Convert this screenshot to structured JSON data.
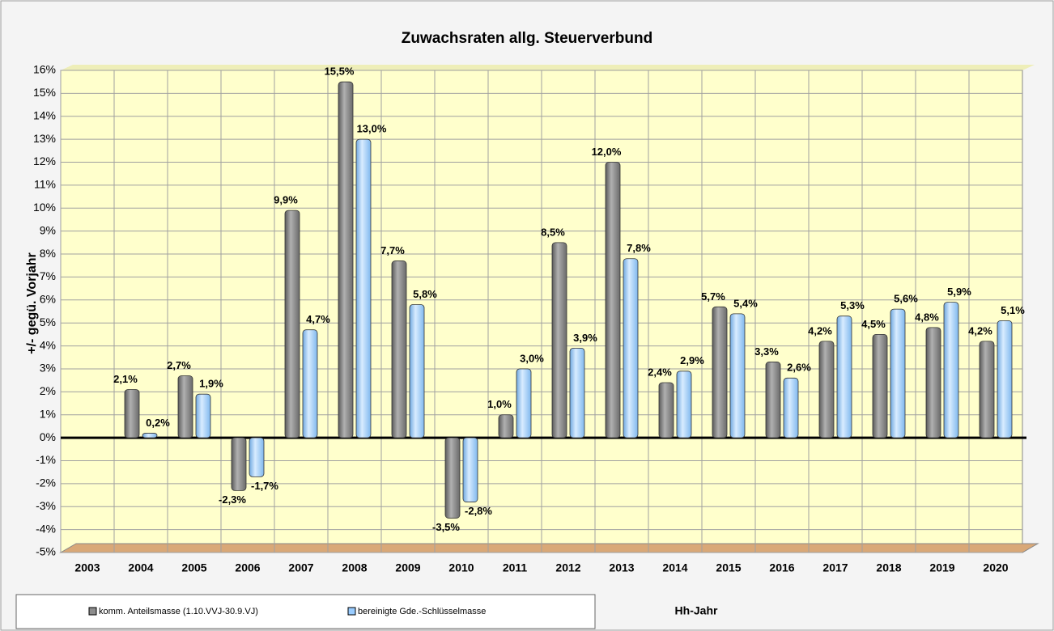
{
  "chart_data": {
    "type": "bar",
    "title": "Zuwachsraten allg. Steuerverbund",
    "x_label": "Hh-Jahr",
    "y_label": "+/- gegü. Vorjahr",
    "categories": [
      "2003",
      "2004",
      "2005",
      "2006",
      "2007",
      "2008",
      "2009",
      "2010",
      "2011",
      "2012",
      "2013",
      "2014",
      "2015",
      "2016",
      "2017",
      "2018",
      "2019",
      "2020"
    ],
    "series": [
      {
        "name": "komm. Anteilsmasse (1.10.VVJ-30.9.VJ)",
        "color": "#8c8c8c",
        "values": [
          null,
          2.1,
          2.7,
          -2.3,
          9.9,
          15.5,
          7.7,
          -3.5,
          1.0,
          8.5,
          12.0,
          2.4,
          5.7,
          3.3,
          4.2,
          4.5,
          4.8,
          4.2
        ],
        "value_labels": [
          null,
          "2,1%",
          "2,7%",
          "-2,3%",
          "9,9%",
          "15,5%",
          "7,7%",
          "-3,5%",
          "1,0%",
          "8,5%",
          "12,0%",
          "2,4%",
          "5,7%",
          "3,3%",
          "4,2%",
          "4,5%",
          "4,8%",
          "4,2%"
        ]
      },
      {
        "name": "bereinigte Gde.-Schlüsselmasse",
        "color": "#99ccff",
        "values": [
          null,
          0.2,
          1.9,
          -1.7,
          4.7,
          13.0,
          5.8,
          -2.8,
          3.0,
          3.9,
          7.8,
          2.9,
          5.4,
          2.6,
          5.3,
          5.6,
          5.9,
          5.1
        ],
        "value_labels": [
          null,
          "0,2%",
          "1,9%",
          "-1,7%",
          "4,7%",
          "13,0%",
          "5,8%",
          "-2,8%",
          "3,0%",
          "3,9%",
          "7,8%",
          "2,9%",
          "5,4%",
          "2,6%",
          "5,3%",
          "5,6%",
          "5,9%",
          "5,1%"
        ]
      }
    ],
    "ylim": [
      -5,
      16
    ],
    "yticks": [
      {
        "value": -5,
        "label": "-5%"
      },
      {
        "value": -4,
        "label": "-4%"
      },
      {
        "value": -3,
        "label": "-3%"
      },
      {
        "value": -2,
        "label": "-2%"
      },
      {
        "value": -1,
        "label": "-1%"
      },
      {
        "value": 0,
        "label": "0%"
      },
      {
        "value": 1,
        "label": "1%"
      },
      {
        "value": 2,
        "label": "2%"
      },
      {
        "value": 3,
        "label": "3%"
      },
      {
        "value": 4,
        "label": "4%"
      },
      {
        "value": 5,
        "label": "5%"
      },
      {
        "value": 6,
        "label": "6%"
      },
      {
        "value": 7,
        "label": "7%"
      },
      {
        "value": 8,
        "label": "8%"
      },
      {
        "value": 9,
        "label": "9%"
      },
      {
        "value": 10,
        "label": "10%"
      },
      {
        "value": 11,
        "label": "11%"
      },
      {
        "value": 12,
        "label": "12%"
      },
      {
        "value": 13,
        "label": "13%"
      },
      {
        "value": 14,
        "label": "14%"
      },
      {
        "value": 15,
        "label": "15%"
      },
      {
        "value": 16,
        "label": "16%"
      }
    ],
    "grid": true
  }
}
